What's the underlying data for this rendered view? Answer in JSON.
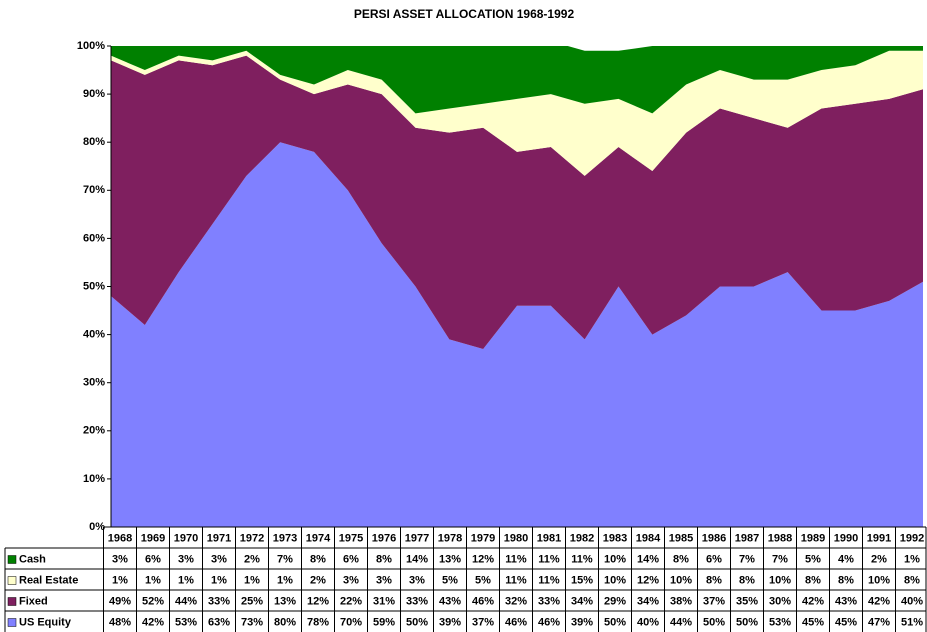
{
  "chart_data": {
    "type": "stacked_area",
    "title": "PERSI ASSET ALLOCATION  1968-1992",
    "categories": [
      "1968",
      "1969",
      "1970",
      "1971",
      "1972",
      "1973",
      "1974",
      "1975",
      "1976",
      "1977",
      "1978",
      "1979",
      "1980",
      "1981",
      "1982",
      "1983",
      "1984",
      "1985",
      "1986",
      "1987",
      "1988",
      "1989",
      "1990",
      "1991",
      "1992"
    ],
    "series": [
      {
        "name": "US Equity",
        "color": "#8080ff",
        "values": [
          48,
          42,
          53,
          63,
          73,
          80,
          78,
          70,
          59,
          50,
          39,
          37,
          46,
          46,
          39,
          50,
          40,
          44,
          50,
          50,
          53,
          45,
          45,
          47,
          51
        ],
        "value_labels": [
          "48%",
          "42%",
          "53%",
          "63%",
          "73%",
          "80%",
          "78%",
          "70%",
          "59%",
          "50%",
          "39%",
          "37%",
          "46%",
          "46%",
          "39%",
          "50%",
          "40%",
          "44%",
          "50%",
          "50%",
          "53%",
          "45%",
          "45%",
          "47%",
          "51%"
        ]
      },
      {
        "name": "Fixed",
        "color": "#7f1f5f",
        "values": [
          49,
          52,
          44,
          33,
          25,
          13,
          12,
          22,
          31,
          33,
          43,
          46,
          32,
          33,
          34,
          29,
          34,
          38,
          37,
          35,
          30,
          42,
          43,
          42,
          40
        ],
        "value_labels": [
          "49%",
          "52%",
          "44%",
          "33%",
          "25%",
          "13%",
          "12%",
          "22%",
          "31%",
          "33%",
          "43%",
          "46%",
          "32%",
          "33%",
          "34%",
          "29%",
          "34%",
          "38%",
          "37%",
          "35%",
          "30%",
          "42%",
          "43%",
          "42%",
          "40%"
        ]
      },
      {
        "name": "Real Estate",
        "color": "#ffffcc",
        "values": [
          1,
          1,
          1,
          1,
          1,
          1,
          2,
          3,
          3,
          3,
          5,
          5,
          11,
          11,
          15,
          10,
          12,
          10,
          8,
          8,
          10,
          8,
          8,
          10,
          8
        ],
        "value_labels": [
          "1%",
          "1%",
          "1%",
          "1%",
          "1%",
          "1%",
          "2%",
          "3%",
          "3%",
          "3%",
          "5%",
          "5%",
          "11%",
          "11%",
          "15%",
          "10%",
          "12%",
          "10%",
          "8%",
          "8%",
          "10%",
          "8%",
          "8%",
          "10%",
          "8%"
        ]
      },
      {
        "name": "Cash",
        "color": "#008000",
        "values": [
          3,
          6,
          3,
          3,
          2,
          7,
          8,
          6,
          8,
          14,
          13,
          12,
          11,
          11,
          11,
          10,
          14,
          8,
          6,
          7,
          7,
          5,
          4,
          2,
          1
        ],
        "value_labels": [
          "3%",
          "6%",
          "3%",
          "3%",
          "2%",
          "7%",
          "8%",
          "6%",
          "8%",
          "14%",
          "13%",
          "12%",
          "11%",
          "11%",
          "11%",
          "10%",
          "14%",
          "8%",
          "6%",
          "7%",
          "7%",
          "5%",
          "4%",
          "2%",
          "1%"
        ]
      }
    ],
    "ylim": [
      0,
      100
    ],
    "yticks": [
      {
        "value": 0,
        "label": "0%"
      },
      {
        "value": 10,
        "label": "10%"
      },
      {
        "value": 20,
        "label": "20%"
      },
      {
        "value": 30,
        "label": "30%"
      },
      {
        "value": 40,
        "label": "40%"
      },
      {
        "value": 50,
        "label": "50%"
      },
      {
        "value": 60,
        "label": "60%"
      },
      {
        "value": 70,
        "label": "70%"
      },
      {
        "value": 80,
        "label": "80%"
      },
      {
        "value": 90,
        "label": "90%"
      },
      {
        "value": 100,
        "label": "100%"
      }
    ]
  }
}
